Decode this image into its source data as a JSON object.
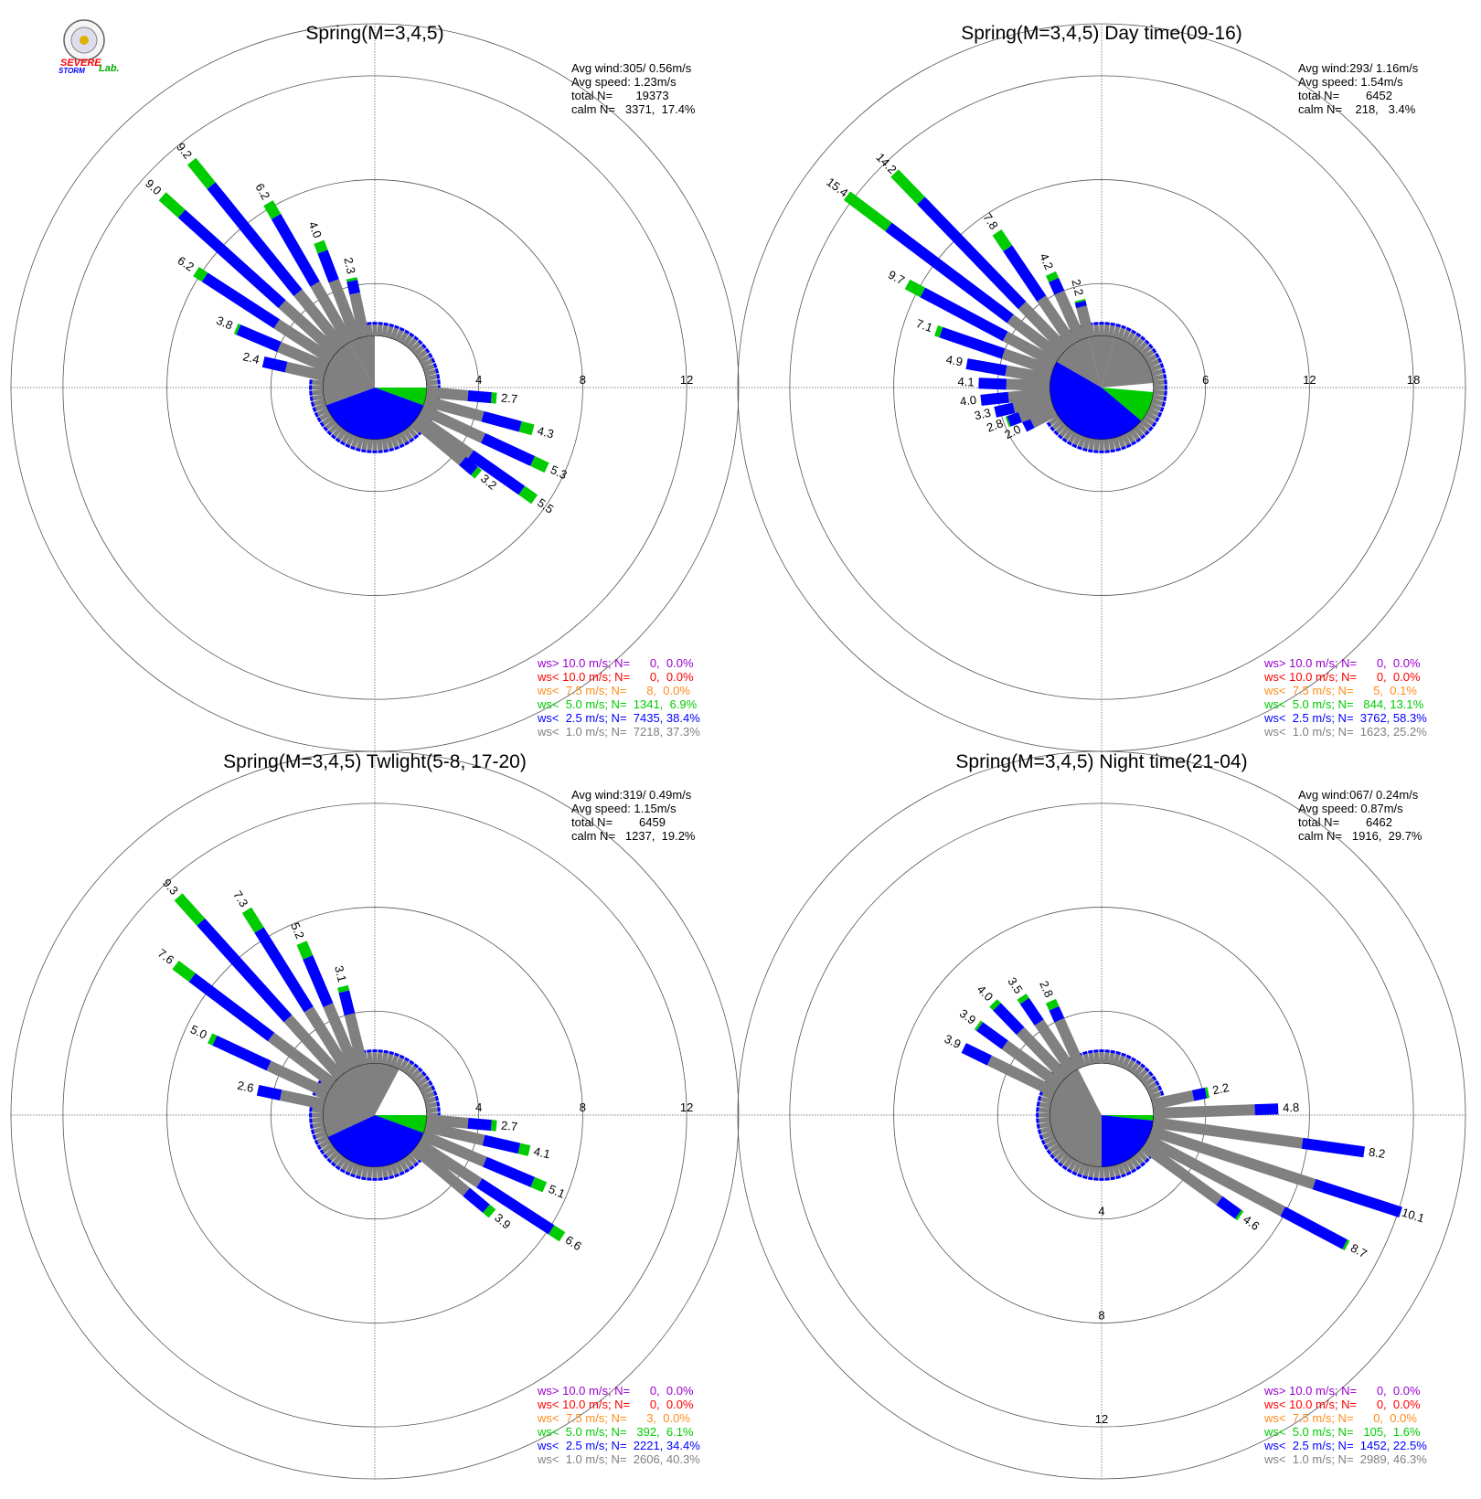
{
  "colors": {
    "gray": "#808080",
    "blue": "#0000ff",
    "green": "#00cc00",
    "orange": "#ff8c1a",
    "red": "#ff0000",
    "purple": "#9900cc",
    "grid": "#000000"
  },
  "logo": {
    "line1": "SEVERE",
    "line2": "STORM",
    "line3": "Lab."
  },
  "chart_data": [
    {
      "type": "wind-rose",
      "title": "Spring(M=3,4,5)",
      "stats": {
        "avg_wind": "Avg wind:305/ 0.56m/s",
        "avg_speed": "Avg speed: 1.23m/s",
        "total": "total N=       19373",
        "calm": "calm N=   3371,  17.4%"
      },
      "rings": [
        4,
        8,
        12
      ],
      "ring_label_dir": 90,
      "max_radius": 14,
      "calm_radius": 2.0,
      "calm_pie": [
        {
          "color": "gray",
          "from": 330,
          "to": 360
        },
        {
          "color": "blue",
          "from": 0,
          "to": 0
        },
        {
          "color": "green",
          "from": 90,
          "to": 110
        },
        {
          "color": "blue",
          "from": 110,
          "to": 250
        },
        {
          "color": "gray",
          "from": 250,
          "to": 330
        }
      ],
      "bars": [
        {
          "dir": 95,
          "total": 2.7,
          "parts": [
            1.6,
            0.9,
            0.2
          ],
          "label": "2.7"
        },
        {
          "dir": 105,
          "total": 4.3,
          "parts": [
            2.3,
            1.5,
            0.5
          ],
          "label": "4.3"
        },
        {
          "dir": 115,
          "total": 5.3,
          "parts": [
            2.6,
            2.1,
            0.6
          ],
          "label": "5.3"
        },
        {
          "dir": 125,
          "total": 5.5,
          "parts": [
            2.5,
            2.4,
            0.6
          ],
          "label": "5.5"
        },
        {
          "dir": 130,
          "total": 3.2,
          "parts": [
            2.4,
            0.6,
            0.2
          ],
          "label": "3.2"
        },
        {
          "dir": 283,
          "total": 2.4,
          "parts": [
            1.5,
            0.9,
            0.0
          ],
          "label": "2.4"
        },
        {
          "dir": 293,
          "total": 3.8,
          "parts": [
            2.0,
            1.7,
            0.1
          ],
          "label": "3.8"
        },
        {
          "dir": 303,
          "total": 6.2,
          "parts": [
            2.5,
            3.3,
            0.4
          ],
          "label": "6.2"
        },
        {
          "dir": 312,
          "total": 9.0,
          "parts": [
            2.8,
            5.2,
            1.0
          ],
          "label": "9.0"
        },
        {
          "dir": 321,
          "total": 9.2,
          "parts": [
            2.7,
            5.3,
            1.2
          ],
          "label": "9.2"
        },
        {
          "dir": 330,
          "total": 6.2,
          "parts": [
            2.6,
            3.0,
            0.6
          ],
          "label": "6.2"
        },
        {
          "dir": 339,
          "total": 4.0,
          "parts": [
            2.4,
            1.2,
            0.4
          ],
          "label": "4.0"
        },
        {
          "dir": 348,
          "total": 2.3,
          "parts": [
            1.7,
            0.5,
            0.1
          ],
          "label": "2.3"
        }
      ],
      "legend": [
        {
          "text": "ws> 10.0 m/s; N=      0,  0.0%",
          "color": "purple"
        },
        {
          "text": "ws< 10.0 m/s; N=      0,  0.0%",
          "color": "red"
        },
        {
          "text": "ws<  7.5 m/s; N=      8,  0.0%",
          "color": "orange"
        },
        {
          "text": "ws<  5.0 m/s; N=  1341,  6.9%",
          "color": "green"
        },
        {
          "text": "ws<  2.5 m/s; N=  7435, 38.4%",
          "color": "blue"
        },
        {
          "text": "ws<  1.0 m/s; N=  7218, 37.3%",
          "color": "gray"
        }
      ]
    },
    {
      "type": "wind-rose",
      "title": "Spring(M=3,4,5) Day time(09-16)",
      "stats": {
        "avg_wind": "Avg wind:293/ 1.16m/s",
        "avg_speed": "Avg speed: 1.54m/s",
        "total": "total N=        6452",
        "calm": "calm N=    218,   3.4%"
      },
      "rings": [
        6,
        12,
        18
      ],
      "ring_label_dir": 90,
      "max_radius": 21,
      "calm_radius": 3.0,
      "calm_pie": [
        {
          "color": "gray",
          "from": 345,
          "to": 360
        },
        {
          "color": "gray",
          "from": 0,
          "to": 15
        },
        {
          "color": "gray",
          "from": 15,
          "to": 85
        },
        {
          "color": "green",
          "from": 95,
          "to": 130
        },
        {
          "color": "blue",
          "from": 130,
          "to": 300
        },
        {
          "color": "gray",
          "from": 300,
          "to": 345
        }
      ],
      "bars": [
        {
          "dir": 243,
          "total": 2.0,
          "parts": [
            1.5,
            0.5,
            0.0
          ],
          "label": "2.0"
        },
        {
          "dir": 250,
          "total": 2.8,
          "parts": [
            2.0,
            0.7,
            0.1
          ],
          "label": "2.8"
        },
        {
          "dir": 257,
          "total": 3.3,
          "parts": [
            2.2,
            1.1,
            0.0
          ],
          "label": "3.3"
        },
        {
          "dir": 264,
          "total": 4.0,
          "parts": [
            2.4,
            1.6,
            0.0
          ],
          "label": "4.0"
        },
        {
          "dir": 272,
          "total": 4.1,
          "parts": [
            2.5,
            1.6,
            0.0
          ],
          "label": "4.1"
        },
        {
          "dir": 280,
          "total": 4.9,
          "parts": [
            2.6,
            2.3,
            0.0
          ],
          "label": "4.9"
        },
        {
          "dir": 289,
          "total": 7.1,
          "parts": [
            3.0,
            3.8,
            0.3
          ],
          "label": "7.1"
        },
        {
          "dir": 298,
          "total": 9.7,
          "parts": [
            3.3,
            5.4,
            1.0
          ],
          "label": "9.7"
        },
        {
          "dir": 307,
          "total": 15.4,
          "parts": [
            3.6,
            8.8,
            3.0
          ],
          "label": "15.4"
        },
        {
          "dir": 316,
          "total": 14.2,
          "parts": [
            3.6,
            8.4,
            2.2
          ],
          "label": "14.2"
        },
        {
          "dir": 326,
          "total": 7.8,
          "parts": [
            3.2,
            3.5,
            1.1
          ],
          "label": "7.8"
        },
        {
          "dir": 336,
          "total": 4.2,
          "parts": [
            3.0,
            0.8,
            0.4
          ],
          "label": "4.2"
        },
        {
          "dir": 346,
          "total": 2.2,
          "parts": [
            1.8,
            0.3,
            0.1
          ],
          "label": "2.2"
        }
      ],
      "legend": [
        {
          "text": "ws> 10.0 m/s; N=      0,  0.0%",
          "color": "purple"
        },
        {
          "text": "ws< 10.0 m/s; N=      0,  0.0%",
          "color": "red"
        },
        {
          "text": "ws<  7.5 m/s; N=      5,  0.1%",
          "color": "orange"
        },
        {
          "text": "ws<  5.0 m/s; N=   844, 13.1%",
          "color": "green"
        },
        {
          "text": "ws<  2.5 m/s; N=  3762, 58.3%",
          "color": "blue"
        },
        {
          "text": "ws<  1.0 m/s; N=  1623, 25.2%",
          "color": "gray"
        }
      ]
    },
    {
      "type": "wind-rose",
      "title": "Spring(M=3,4,5) Twlight(5-8, 17-20)",
      "stats": {
        "avg_wind": "Avg wind:319/ 0.49m/s",
        "avg_speed": "Avg speed: 1.15m/s",
        "total": "total N=        6459",
        "calm": "calm N=   1237,  19.2%"
      },
      "rings": [
        4,
        8,
        12
      ],
      "ring_label_dir": 90,
      "max_radius": 14,
      "calm_radius": 2.0,
      "calm_pie": [
        {
          "color": "gray",
          "from": 0,
          "to": 28
        },
        {
          "color": "green",
          "from": 90,
          "to": 110
        },
        {
          "color": "blue",
          "from": 110,
          "to": 245
        },
        {
          "color": "gray",
          "from": 245,
          "to": 360
        }
      ],
      "bars": [
        {
          "dir": 95,
          "total": 2.7,
          "parts": [
            1.6,
            0.9,
            0.2
          ],
          "label": "2.7"
        },
        {
          "dir": 103,
          "total": 4.1,
          "parts": [
            2.3,
            1.4,
            0.4
          ],
          "label": "4.1"
        },
        {
          "dir": 113,
          "total": 5.1,
          "parts": [
            2.6,
            2.0,
            0.5
          ],
          "label": "5.1"
        },
        {
          "dir": 123,
          "total": 6.6,
          "parts": [
            2.8,
            3.3,
            0.5
          ],
          "label": "6.6"
        },
        {
          "dir": 130,
          "total": 3.9,
          "parts": [
            2.6,
            1.0,
            0.3
          ],
          "label": "3.9"
        },
        {
          "dir": 282,
          "total": 2.6,
          "parts": [
            1.7,
            0.9,
            0.0
          ],
          "label": "2.6"
        },
        {
          "dir": 295,
          "total": 5.0,
          "parts": [
            2.5,
            2.3,
            0.2
          ],
          "label": "5.0"
        },
        {
          "dir": 307,
          "total": 7.6,
          "parts": [
            3.0,
            3.8,
            0.8
          ],
          "label": "7.6"
        },
        {
          "dir": 318,
          "total": 9.3,
          "parts": [
            3.0,
            5.0,
            1.3
          ],
          "label": "9.3"
        },
        {
          "dir": 328,
          "total": 7.3,
          "parts": [
            2.8,
            3.6,
            0.9
          ],
          "label": "7.3"
        },
        {
          "dir": 337,
          "total": 5.2,
          "parts": [
            2.6,
            2.0,
            0.6
          ],
          "label": "5.2"
        },
        {
          "dir": 346,
          "total": 3.1,
          "parts": [
            2.0,
            0.9,
            0.2
          ],
          "label": "3.1"
        }
      ],
      "legend": [
        {
          "text": "ws> 10.0 m/s; N=      0,  0.0%",
          "color": "purple"
        },
        {
          "text": "ws< 10.0 m/s; N=      0,  0.0%",
          "color": "red"
        },
        {
          "text": "ws<  7.5 m/s; N=      3,  0.0%",
          "color": "orange"
        },
        {
          "text": "ws<  5.0 m/s; N=   392,  6.1%",
          "color": "green"
        },
        {
          "text": "ws<  2.5 m/s; N=  2221, 34.4%",
          "color": "blue"
        },
        {
          "text": "ws<  1.0 m/s; N=  2606, 40.3%",
          "color": "gray"
        }
      ]
    },
    {
      "type": "wind-rose",
      "title": "Spring(M=3,4,5) Night time(21-04)",
      "stats": {
        "avg_wind": "Avg wind:067/ 0.24m/s",
        "avg_speed": "Avg speed: 0.87m/s",
        "total": "total N=        6462",
        "calm": "calm N=   1916,  29.7%"
      },
      "rings": [
        4,
        8,
        12
      ],
      "ring_label_dir": 180,
      "max_radius": 14,
      "calm_radius": 2.0,
      "calm_pie": [
        {
          "color": "green",
          "from": 90,
          "to": 96
        },
        {
          "color": "blue",
          "from": 96,
          "to": 180
        },
        {
          "color": "gray",
          "from": 180,
          "to": 333
        }
      ],
      "bars": [
        {
          "dir": 78,
          "total": 2.2,
          "parts": [
            1.6,
            0.5,
            0.1
          ],
          "label": "2.2"
        },
        {
          "dir": 88,
          "total": 4.8,
          "parts": [
            3.9,
            0.9,
            0.0
          ],
          "label": "4.8"
        },
        {
          "dir": 98,
          "total": 8.2,
          "parts": [
            5.8,
            2.4,
            0.0
          ],
          "label": "8.2"
        },
        {
          "dir": 108,
          "total": 10.1,
          "parts": [
            6.6,
            3.5,
            0.0
          ],
          "label": "10.1"
        },
        {
          "dir": 118,
          "total": 8.7,
          "parts": [
            5.9,
            2.7,
            0.1
          ],
          "label": "8.7"
        },
        {
          "dir": 126,
          "total": 4.6,
          "parts": [
            3.6,
            0.9,
            0.1
          ],
          "label": "4.6"
        },
        {
          "dir": 296,
          "total": 3.9,
          "parts": [
            2.8,
            1.1,
            0.0
          ],
          "label": "3.9"
        },
        {
          "dir": 306,
          "total": 3.9,
          "parts": [
            2.6,
            1.2,
            0.1
          ],
          "label": "3.9"
        },
        {
          "dir": 316,
          "total": 4.0,
          "parts": [
            2.5,
            1.3,
            0.2
          ],
          "label": "4.0"
        },
        {
          "dir": 326,
          "total": 3.5,
          "parts": [
            2.3,
            1.0,
            0.2
          ],
          "label": "3.5"
        },
        {
          "dir": 336,
          "total": 2.8,
          "parts": [
            2.0,
            0.5,
            0.3
          ],
          "label": "2.8"
        }
      ],
      "legend": [
        {
          "text": "ws> 10.0 m/s; N=      0,  0.0%",
          "color": "purple"
        },
        {
          "text": "ws< 10.0 m/s; N=      0,  0.0%",
          "color": "red"
        },
        {
          "text": "ws<  7.5 m/s; N=      0,  0.0%",
          "color": "orange"
        },
        {
          "text": "ws<  5.0 m/s; N=   105,  1.6%",
          "color": "green"
        },
        {
          "text": "ws<  2.5 m/s; N=  1452, 22.5%",
          "color": "blue"
        },
        {
          "text": "ws<  1.0 m/s; N=  2989, 46.3%",
          "color": "gray"
        }
      ]
    }
  ]
}
